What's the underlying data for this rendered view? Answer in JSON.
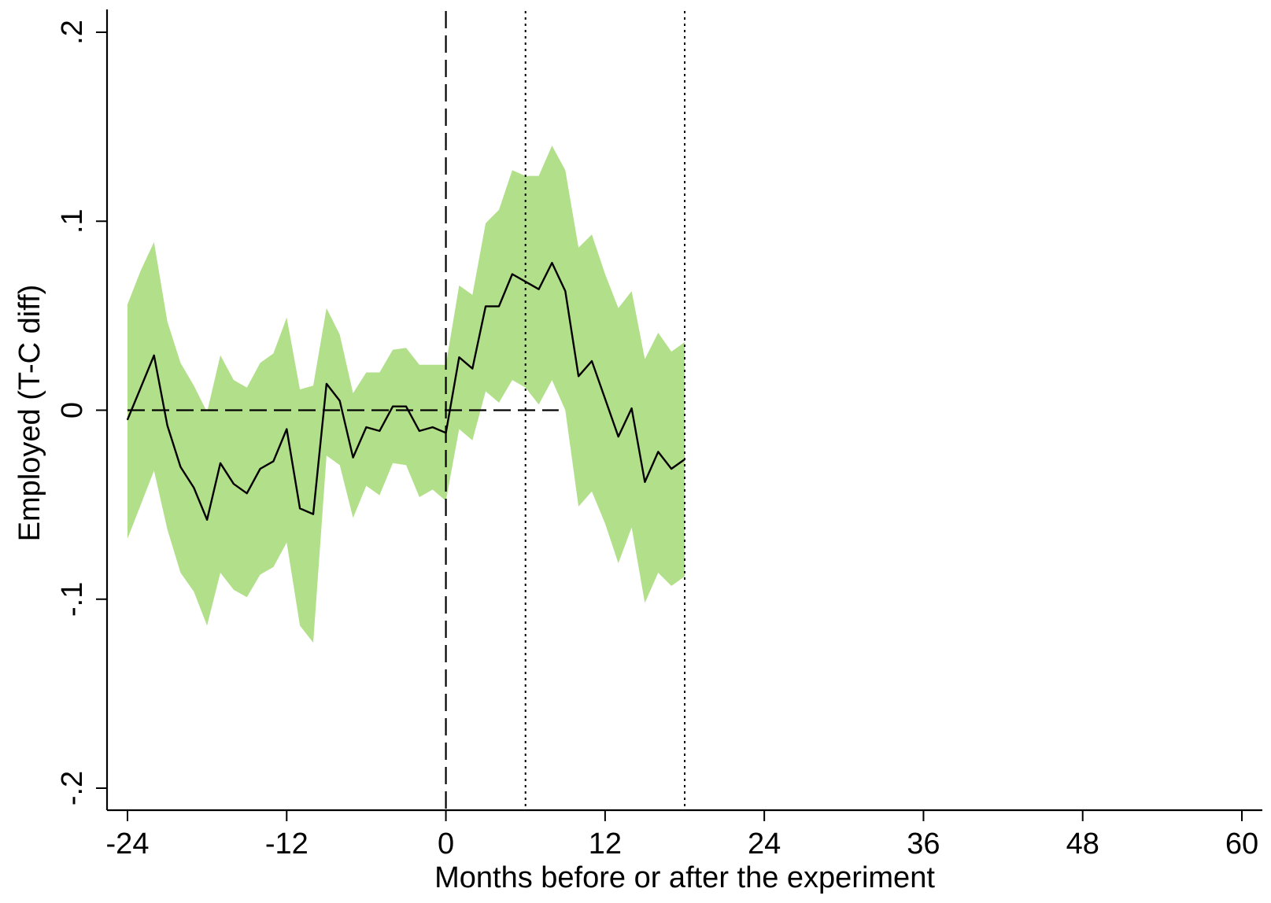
{
  "chart_data": {
    "type": "line",
    "title": "",
    "xlabel": "Months before or after the experiment",
    "ylabel": "Employed (T-C diff)",
    "xlim": [
      -24,
      60
    ],
    "ylim": [
      -0.2,
      0.2
    ],
    "x_ticks": [
      -24,
      -12,
      0,
      12,
      24,
      36,
      48,
      60
    ],
    "x_tick_labels": [
      "-24",
      "-12",
      "0",
      "12",
      "24",
      "36",
      "48",
      "60"
    ],
    "y_ticks": [
      -0.2,
      -0.1,
      0,
      0.1,
      0.2
    ],
    "y_tick_labels": [
      "-.2",
      "-.1",
      "0",
      ".1",
      ".2"
    ],
    "grid": false,
    "colors": {
      "band": "#b2df8a",
      "line": "#000000",
      "axis": "#000000"
    },
    "reference_lines": [
      {
        "orientation": "vertical",
        "x": 0,
        "style": "dashed"
      },
      {
        "orientation": "vertical",
        "x": 6,
        "style": "dotted"
      },
      {
        "orientation": "vertical",
        "x": 18,
        "style": "dotted"
      },
      {
        "orientation": "horizontal",
        "y": 0,
        "x_range": [
          -24,
          8.5
        ],
        "style": "dashed"
      }
    ],
    "series": [
      {
        "type": "line",
        "x": [
          -24,
          -23,
          -22,
          -21,
          -20,
          -19,
          -18,
          -17,
          -16,
          -15,
          -14,
          -13,
          -12,
          -11,
          -10,
          -9,
          -8,
          -7,
          -6,
          -5,
          -4,
          -3,
          -2,
          -1,
          0,
          1,
          2,
          3,
          4,
          5,
          6,
          7,
          8,
          9,
          10,
          11,
          12,
          13,
          14,
          15,
          16,
          17,
          18
        ],
        "estimate": [
          -0.005,
          0.012,
          0.029,
          -0.008,
          -0.03,
          -0.041,
          -0.058,
          -0.028,
          -0.039,
          -0.044,
          -0.031,
          -0.027,
          -0.01,
          -0.052,
          -0.055,
          0.014,
          0.005,
          -0.025,
          -0.009,
          -0.011,
          0.002,
          0.002,
          -0.011,
          -0.009,
          -0.012,
          0.028,
          0.022,
          0.055,
          0.055,
          0.072,
          0.068,
          0.064,
          0.078,
          0.063,
          0.018,
          0.026,
          0.006,
          -0.014,
          0.001,
          -0.038,
          -0.022,
          -0.031,
          -0.026
        ],
        "upper": [
          0.056,
          0.074,
          0.089,
          0.047,
          0.025,
          0.013,
          -0.001,
          0.029,
          0.016,
          0.012,
          0.025,
          0.03,
          0.049,
          0.011,
          0.013,
          0.054,
          0.04,
          0.009,
          0.02,
          0.02,
          0.032,
          0.033,
          0.024,
          0.024,
          0.024,
          0.066,
          0.061,
          0.099,
          0.106,
          0.127,
          0.124,
          0.124,
          0.14,
          0.127,
          0.086,
          0.093,
          0.072,
          0.054,
          0.063,
          0.027,
          0.041,
          0.031,
          0.036
        ],
        "lower": [
          -0.068,
          -0.05,
          -0.032,
          -0.063,
          -0.086,
          -0.096,
          -0.114,
          -0.086,
          -0.095,
          -0.099,
          -0.087,
          -0.083,
          -0.07,
          -0.114,
          -0.123,
          -0.024,
          -0.029,
          -0.057,
          -0.04,
          -0.045,
          -0.028,
          -0.029,
          -0.046,
          -0.042,
          -0.048,
          -0.01,
          -0.016,
          0.01,
          0.004,
          0.016,
          0.012,
          0.003,
          0.016,
          0.0,
          -0.051,
          -0.043,
          -0.06,
          -0.081,
          -0.062,
          -0.102,
          -0.086,
          -0.093,
          -0.088
        ]
      }
    ]
  }
}
